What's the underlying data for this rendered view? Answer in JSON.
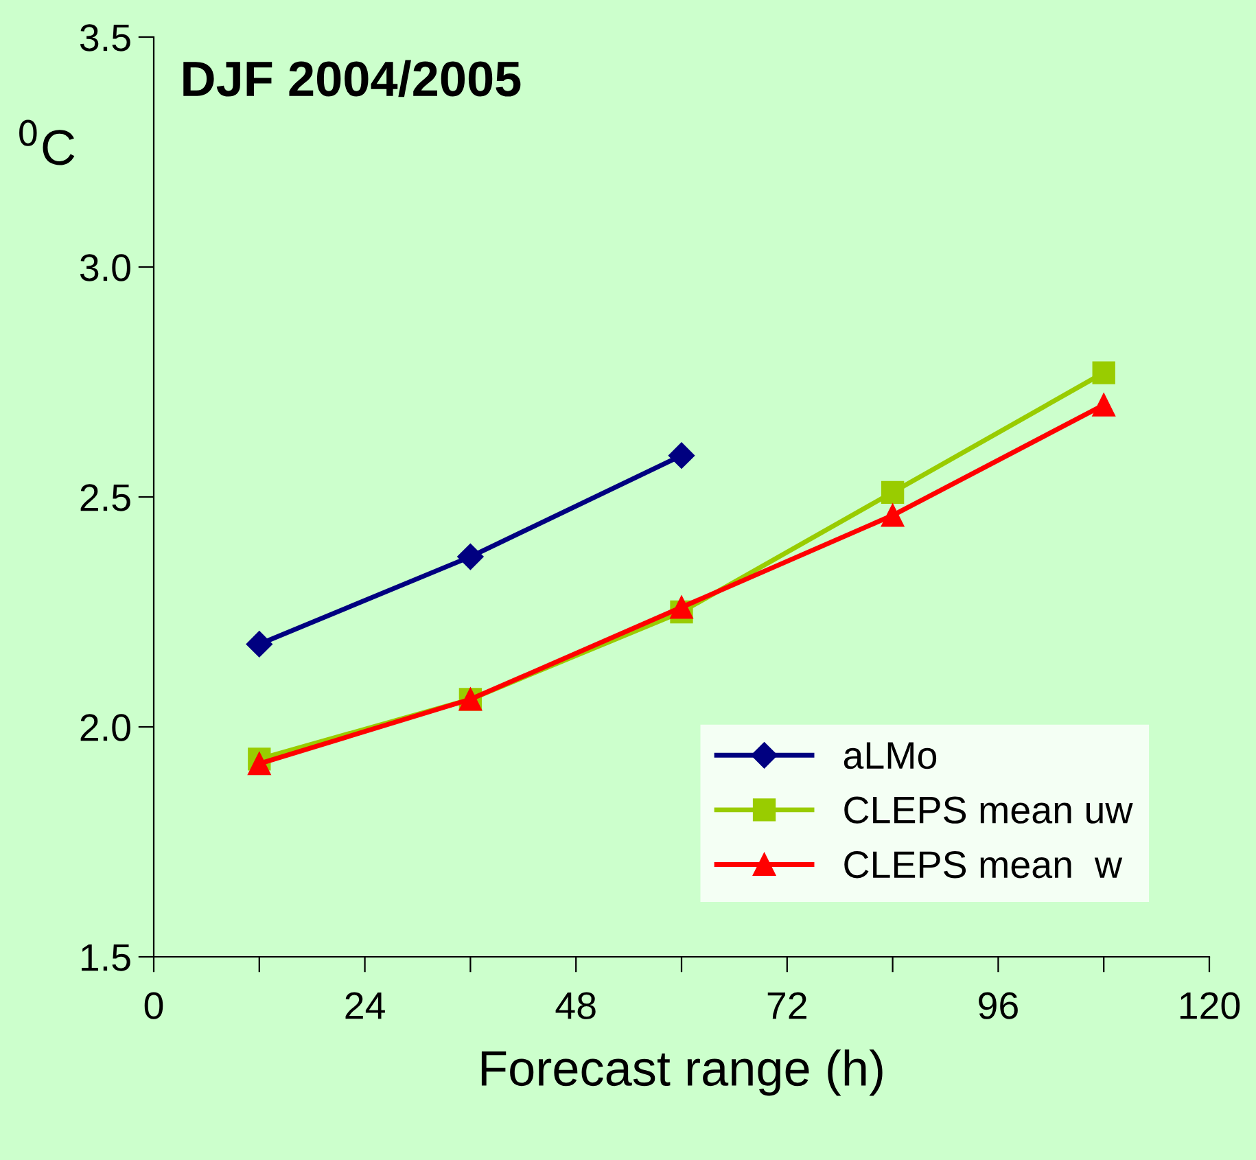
{
  "chart_data": {
    "type": "line",
    "title": "DJF 2004/2005",
    "xlabel": "Forecast range (h)",
    "ylabel": "$^{0}$C",
    "xlim": [
      0,
      120
    ],
    "xticks": [
      0,
      {
        "value": 12,
        "label": null
      },
      24,
      {
        "value": 36,
        "label": null
      },
      48,
      {
        "value": 60,
        "label": null
      },
      72,
      {
        "value": 84,
        "label": null
      },
      96,
      {
        "value": 108,
        "label": null
      },
      120
    ],
    "ylim": [
      1.5,
      3.5
    ],
    "yticks": [
      {
        "value": 1.5,
        "label": "1.5"
      },
      {
        "value": 2.0,
        "label": "2.0"
      },
      {
        "value": 2.5,
        "label": "2.5"
      },
      {
        "value": 3.0,
        "label": "3.0"
      },
      {
        "value": 3.5,
        "label": "3.5"
      }
    ],
    "grid": false,
    "legend": "bottom right",
    "series": [
      {
        "name": "aLMo",
        "color": "#000080",
        "marker": "diamond",
        "x": [
          12,
          36,
          60
        ],
        "values": [
          2.18,
          2.37,
          2.59
        ]
      },
      {
        "name": "CLEPS mean uw",
        "color": "#99cc00",
        "marker": "square",
        "x": [
          12,
          36,
          60,
          84,
          108
        ],
        "values": [
          1.93,
          2.06,
          2.25,
          2.51,
          2.77
        ]
      },
      {
        "name": "CLEPS mean  w",
        "color": "#ff0000",
        "marker": "triangle",
        "x": [
          12,
          36,
          60,
          84,
          108
        ],
        "values": [
          1.92,
          2.06,
          2.26,
          2.46,
          2.7
        ]
      }
    ]
  }
}
